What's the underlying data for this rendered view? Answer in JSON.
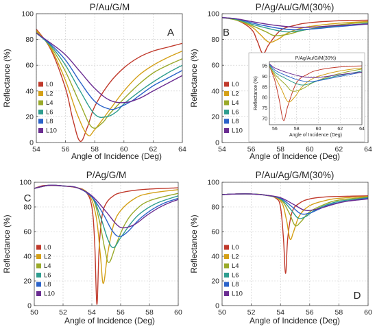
{
  "figure_labels": {
    "A": "A",
    "B": "B",
    "C": "C",
    "D": "D"
  },
  "colors": {
    "L0": "#c0392b",
    "L2": "#d4a017",
    "L4": "#9aaa2a",
    "L6": "#2e9d8f",
    "L8": "#2a62c9",
    "L10": "#6a2c91"
  },
  "legend_labels": [
    "L0",
    "L2",
    "L4",
    "L6",
    "L8",
    "L10"
  ],
  "chart_data": [
    {
      "id": "A",
      "type": "line",
      "title": "P/Au/G/M",
      "xlabel": "Angle of Incidence (Deg)",
      "ylabel": "Reflectance (%)",
      "xlim": [
        54,
        64
      ],
      "ylim": [
        0,
        100
      ],
      "xticks": [
        54,
        56,
        58,
        60,
        62,
        64
      ],
      "yticks": [
        0,
        20,
        40,
        60,
        80,
        100
      ],
      "legend_position": "bottom-left",
      "grid": true,
      "series": [
        {
          "name": "L0",
          "color": "#c0392b",
          "x": [
            54,
            55,
            56,
            56.5,
            57,
            57.5,
            58,
            59,
            60,
            61,
            62,
            63,
            64
          ],
          "y": [
            88,
            72,
            42,
            18,
            1,
            12,
            28,
            46,
            58,
            66,
            71,
            74,
            77
          ]
        },
        {
          "name": "L2",
          "color": "#d4a017",
          "x": [
            54,
            55,
            56,
            56.8,
            57.5,
            58,
            59,
            60,
            61,
            62,
            63,
            64
          ],
          "y": [
            87,
            73,
            48,
            22,
            6,
            10,
            25,
            40,
            52,
            60,
            66,
            71
          ]
        },
        {
          "name": "L4",
          "color": "#9aaa2a",
          "x": [
            54,
            55,
            56,
            57,
            57.8,
            58.5,
            59,
            60,
            61,
            62,
            63,
            64
          ],
          "y": [
            86,
            74,
            55,
            30,
            12,
            15,
            22,
            34,
            45,
            54,
            60,
            65
          ]
        },
        {
          "name": "L6",
          "color": "#2e9d8f",
          "x": [
            54,
            55,
            56,
            57,
            58,
            58.8,
            59.5,
            60,
            61,
            62,
            63,
            64
          ],
          "y": [
            85,
            75,
            60,
            40,
            22,
            20,
            24,
            30,
            39,
            47,
            54,
            60
          ]
        },
        {
          "name": "L8",
          "color": "#2a62c9",
          "x": [
            54,
            55,
            56,
            57,
            58,
            59,
            59.6,
            60.5,
            61,
            62,
            63,
            64
          ],
          "y": [
            85,
            76,
            64,
            47,
            32,
            26,
            27,
            32,
            36,
            44,
            50,
            56
          ]
        },
        {
          "name": "L10",
          "color": "#6a2c91",
          "x": [
            54,
            55,
            56,
            57,
            58,
            59,
            60,
            61,
            62,
            63,
            64
          ],
          "y": [
            85,
            77,
            68,
            55,
            42,
            33,
            31,
            34,
            40,
            46,
            52
          ]
        }
      ]
    },
    {
      "id": "B",
      "type": "line",
      "title": "P/Ag/Au/G/M(30%)",
      "xlabel": "Angle of Incidence (Deg)",
      "ylabel": "Reflectance (%)",
      "xlim": [
        54,
        64
      ],
      "ylim": [
        0,
        100
      ],
      "xticks": [
        54,
        56,
        58,
        60,
        62,
        64
      ],
      "yticks": [
        0,
        20,
        40,
        60,
        80,
        100
      ],
      "legend_position": "bottom-left",
      "grid": true,
      "series": [
        {
          "name": "L0",
          "color": "#c0392b",
          "x": [
            54,
            55,
            56,
            56.4,
            56.8,
            57.2,
            58,
            59,
            60,
            62,
            64
          ],
          "y": [
            97,
            95,
            88,
            79,
            69,
            76,
            87,
            91,
            93,
            94.5,
            95
          ]
        },
        {
          "name": "L2",
          "color": "#d4a017",
          "x": [
            54,
            55,
            56,
            56.6,
            57.2,
            57.8,
            58.5,
            59.5,
            61,
            62.5,
            64
          ],
          "y": [
            97,
            95,
            90,
            84,
            78,
            80,
            85,
            89,
            91.5,
            93,
            94
          ]
        },
        {
          "name": "L4",
          "color": "#9aaa2a",
          "x": [
            54,
            55,
            56,
            57,
            57.6,
            58.5,
            59.5,
            61,
            62.5,
            64
          ],
          "y": [
            97,
            95,
            91,
            86,
            83,
            84,
            87,
            90,
            92,
            93.5
          ]
        },
        {
          "name": "L6",
          "color": "#2e9d8f",
          "x": [
            54,
            55,
            56,
            57,
            58,
            58.8,
            60,
            61.5,
            63,
            64
          ],
          "y": [
            97,
            95.5,
            92,
            89,
            86.5,
            86,
            88,
            90,
            91.5,
            92.5
          ]
        },
        {
          "name": "L8",
          "color": "#2a62c9",
          "x": [
            54,
            55,
            56,
            57,
            58,
            59,
            60,
            61.5,
            63,
            64
          ],
          "y": [
            97,
            96,
            93,
            90.5,
            88.5,
            87.5,
            88,
            89.5,
            91,
            92
          ]
        },
        {
          "name": "L10",
          "color": "#6a2c91",
          "x": [
            54,
            55,
            56,
            57,
            58,
            59,
            60,
            61.5,
            63,
            64
          ],
          "y": [
            97,
            96,
            94,
            92,
            90.5,
            89.5,
            89.5,
            90.5,
            91.5,
            92
          ]
        }
      ],
      "inset": {
        "title": "P/Ag/Au/G/M(30%)",
        "xlabel": "Angle of Incidence (Deg)",
        "ylabel": "Reflectance (%)",
        "xlim": [
          55.5,
          64
        ],
        "ylim": [
          67,
          97
        ],
        "xticks": [
          56,
          58,
          60,
          62,
          64
        ],
        "yticks": [
          70,
          75,
          80,
          85,
          90,
          95
        ]
      }
    },
    {
      "id": "C",
      "type": "line",
      "title": "P/Ag/G/M",
      "xlabel": "Angle of Incidence (Deg)",
      "ylabel": "Reflectance (%)",
      "xlim": [
        50,
        60
      ],
      "ylim": [
        0,
        100
      ],
      "xticks": [
        50,
        52,
        54,
        56,
        58,
        60
      ],
      "yticks": [
        0,
        20,
        40,
        60,
        80,
        100
      ],
      "legend_position": "bottom-left",
      "grid": true,
      "series": [
        {
          "name": "L0",
          "color": "#c0392b",
          "x": [
            50,
            50.5,
            51,
            52,
            53,
            53.6,
            54,
            54.2,
            54.35,
            54.5,
            54.7,
            55,
            55.5,
            56,
            57,
            58,
            60
          ],
          "y": [
            95,
            97,
            97.5,
            97,
            95.5,
            92,
            80,
            50,
            1,
            45,
            72,
            83,
            89,
            91.5,
            93.5,
            94.5,
            95.5
          ]
        },
        {
          "name": "L2",
          "color": "#d4a017",
          "x": [
            50,
            51,
            52,
            53,
            53.8,
            54.3,
            54.6,
            54.8,
            55.1,
            55.5,
            56,
            57,
            58,
            60
          ],
          "y": [
            95,
            97.5,
            97,
            95.5,
            90,
            72,
            40,
            18,
            42,
            65,
            77,
            87,
            91,
            94
          ]
        },
        {
          "name": "L4",
          "color": "#9aaa2a",
          "x": [
            50,
            51,
            52,
            53,
            54,
            54.5,
            54.9,
            55.2,
            55.7,
            56.3,
            57,
            58,
            60
          ],
          "y": [
            95,
            97.5,
            97,
            95.5,
            88,
            70,
            46,
            35,
            50,
            66,
            77,
            85,
            91
          ]
        },
        {
          "name": "L6",
          "color": "#2e9d8f",
          "x": [
            50,
            51,
            52,
            53,
            54,
            54.6,
            55.1,
            55.5,
            56,
            56.8,
            57.5,
            58.5,
            60
          ],
          "y": [
            95,
            97.5,
            97,
            95.5,
            88,
            72,
            54,
            47,
            55,
            68,
            76,
            83,
            89
          ]
        },
        {
          "name": "L8",
          "color": "#2a62c9",
          "x": [
            50,
            51,
            52,
            53,
            54,
            54.8,
            55.4,
            55.9,
            56.5,
            57.3,
            58.2,
            59,
            60
          ],
          "y": [
            95,
            97.5,
            97,
            95.5,
            88,
            74,
            61,
            56,
            60,
            70,
            78,
            83,
            87
          ]
        },
        {
          "name": "L10",
          "color": "#6a2c91",
          "x": [
            50,
            51,
            52,
            53,
            54,
            55,
            55.7,
            56.2,
            57,
            57.8,
            58.6,
            59.3,
            60
          ],
          "y": [
            95,
            97.5,
            97,
            95.5,
            89,
            76,
            66,
            63,
            66,
            73,
            79,
            83,
            86
          ]
        }
      ]
    },
    {
      "id": "D",
      "type": "line",
      "title": "P/Au/Ag/G/M(30%)",
      "xlabel": "Angle of Incidence (Deg)",
      "ylabel": "Reflectance (%)",
      "xlim": [
        50,
        60
      ],
      "ylim": [
        0,
        100
      ],
      "xticks": [
        50,
        52,
        54,
        56,
        58,
        60
      ],
      "yticks": [
        0,
        20,
        40,
        60,
        80,
        100
      ],
      "legend_position": "bottom-left",
      "grid": true,
      "series": [
        {
          "name": "L0",
          "color": "#c0392b",
          "x": [
            50,
            51,
            52,
            53,
            53.7,
            54,
            54.2,
            54.35,
            54.5,
            54.8,
            55.3,
            56,
            57,
            58,
            60
          ],
          "y": [
            90,
            90.5,
            90.5,
            89.5,
            87,
            80,
            55,
            26,
            55,
            76,
            83,
            86.5,
            88,
            88.5,
            89
          ]
        },
        {
          "name": "L2",
          "color": "#d4a017",
          "x": [
            50,
            51,
            52,
            53,
            54,
            54.4,
            54.65,
            54.9,
            55.3,
            56,
            57,
            58,
            60
          ],
          "y": [
            90,
            90.5,
            90.5,
            89.5,
            85,
            70,
            54,
            60,
            73,
            81,
            85,
            87,
            88.5
          ]
        },
        {
          "name": "L4",
          "color": "#9aaa2a",
          "x": [
            50,
            51,
            52,
            53,
            54,
            54.6,
            55,
            55.4,
            56,
            57,
            58,
            60
          ],
          "y": [
            90,
            90.5,
            90.5,
            89.5,
            86,
            75,
            65,
            68,
            76,
            82,
            85.5,
            88
          ]
        },
        {
          "name": "L6",
          "color": "#2e9d8f",
          "x": [
            50,
            51,
            52,
            53,
            54,
            54.7,
            55.2,
            55.7,
            56.3,
            57,
            58,
            60
          ],
          "y": [
            90,
            90.5,
            90.5,
            89.5,
            86.5,
            78,
            71,
            72,
            77,
            81,
            84.5,
            87.5
          ]
        },
        {
          "name": "L8",
          "color": "#2a62c9",
          "x": [
            50,
            51,
            52,
            53,
            54,
            54.8,
            55.4,
            56,
            56.6,
            57.3,
            58.2,
            60
          ],
          "y": [
            90,
            90.5,
            90.5,
            89.5,
            87,
            80,
            74.5,
            75,
            78,
            81.5,
            84,
            87
          ]
        },
        {
          "name": "L10",
          "color": "#6a2c91",
          "x": [
            50,
            51,
            52,
            53,
            54,
            54.9,
            55.6,
            56.2,
            56.9,
            57.6,
            58.5,
            60
          ],
          "y": [
            90,
            90.5,
            90.5,
            89.5,
            87.5,
            82,
            77.5,
            77.5,
            79.5,
            82,
            84.5,
            86.5
          ]
        }
      ]
    }
  ]
}
